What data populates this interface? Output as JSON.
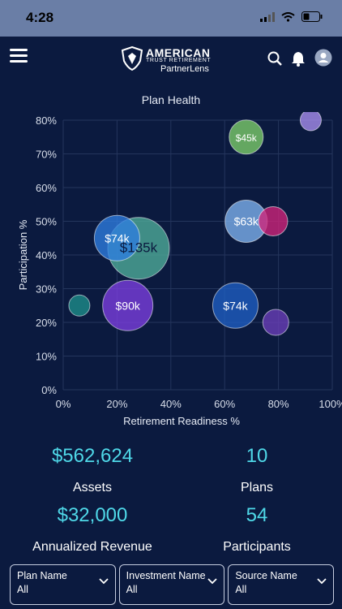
{
  "status_bar": {
    "time": "4:28"
  },
  "header": {
    "brand_name": "AMERICAN",
    "brand_tagline": "TRUST RETIREMENT",
    "product_name": "PartnerLens",
    "icons": [
      "menu-icon",
      "search-icon",
      "bell-icon",
      "user-icon"
    ]
  },
  "chart_data": {
    "type": "scatter",
    "title": "Plan Health",
    "xlabel": "Retirement Readiness %",
    "ylabel": "Participation %",
    "xlim": [
      0,
      100
    ],
    "ylim": [
      0,
      80
    ],
    "x_ticks": [
      "0%",
      "20%",
      "40%",
      "60%",
      "80%",
      "100%"
    ],
    "y_ticks": [
      "0%",
      "10%",
      "20%",
      "30%",
      "40%",
      "50%",
      "60%",
      "70%",
      "80%"
    ],
    "grid": true,
    "points": [
      {
        "x": 28,
        "y": 42,
        "r": 38,
        "label": "$135k",
        "color": "#4fae9a"
      },
      {
        "x": 20,
        "y": 45,
        "r": 28,
        "label": "$74k",
        "color": "#2e7de0"
      },
      {
        "x": 24,
        "y": 25,
        "r": 31,
        "label": "$90k",
        "color": "#7c3fe0"
      },
      {
        "x": 6,
        "y": 25,
        "r": 13,
        "label": "",
        "color": "#1e8f8a"
      },
      {
        "x": 68,
        "y": 75,
        "r": 21,
        "label": "$45k",
        "color": "#7ed06a"
      },
      {
        "x": 92,
        "y": 80,
        "r": 13,
        "label": "",
        "color": "#a98ff0"
      },
      {
        "x": 68,
        "y": 50,
        "r": 26,
        "label": "$63k",
        "color": "#7fb3ef"
      },
      {
        "x": 78,
        "y": 50,
        "r": 18,
        "label": "",
        "color": "#d1247a"
      },
      {
        "x": 64,
        "y": 25,
        "r": 28,
        "label": "$74k",
        "color": "#1f5fc3"
      },
      {
        "x": 79,
        "y": 20,
        "r": 16,
        "label": "",
        "color": "#6a3fb8"
      }
    ]
  },
  "kpis": {
    "assets_value": "$562,624",
    "assets_label": "Assets",
    "plans_value": "10",
    "plans_label": "Plans",
    "revenue_value": "$32,000",
    "revenue_label": "Annualized Revenue",
    "participants_value": "54",
    "participants_label": "Participants"
  },
  "filters": [
    {
      "label": "Plan Name",
      "value": "All"
    },
    {
      "label": "Investment Name",
      "value": "All"
    },
    {
      "label": "Source Name",
      "value": "All"
    }
  ]
}
